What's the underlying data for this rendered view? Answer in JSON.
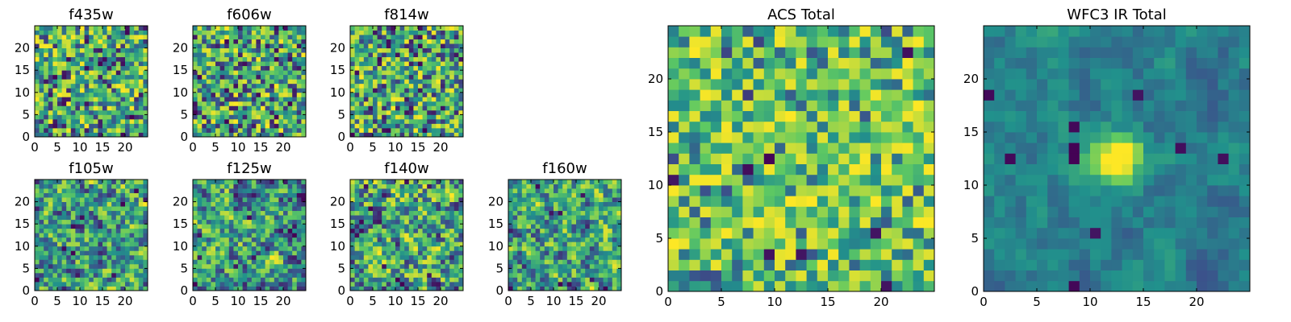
{
  "figure": {
    "colormap": [
      "#440154",
      "#3b528b",
      "#21918c",
      "#5ec962",
      "#fde725"
    ],
    "grid_size": 25
  },
  "chart_data": [
    {
      "id": "f435w",
      "type": "heatmap",
      "title": "f435w",
      "xticks": [
        0,
        5,
        10,
        15,
        20
      ],
      "yticks": [
        0,
        5,
        10,
        15,
        20
      ],
      "xlim": [
        0,
        25
      ],
      "ylim": [
        0,
        25
      ],
      "pattern": "noise",
      "seed": 11
    },
    {
      "id": "f606w",
      "type": "heatmap",
      "title": "f606w",
      "xticks": [
        0,
        5,
        10,
        15,
        20
      ],
      "yticks": [
        0,
        5,
        10,
        15,
        20
      ],
      "xlim": [
        0,
        25
      ],
      "ylim": [
        0,
        25
      ],
      "pattern": "noise",
      "seed": 23
    },
    {
      "id": "f814w",
      "type": "heatmap",
      "title": "f814w",
      "xticks": [
        0,
        5,
        10,
        15,
        20
      ],
      "yticks": [
        0,
        5,
        10,
        15,
        20
      ],
      "xlim": [
        0,
        25
      ],
      "ylim": [
        0,
        25
      ],
      "pattern": "noise",
      "seed": 37
    },
    {
      "id": "f105w",
      "type": "heatmap",
      "title": "f105w",
      "xticks": [
        0,
        5,
        10,
        15,
        20
      ],
      "yticks": [
        0,
        5,
        10,
        15,
        20
      ],
      "xlim": [
        0,
        25
      ],
      "ylim": [
        0,
        25
      ],
      "pattern": "smooth",
      "seed": 41
    },
    {
      "id": "f125w",
      "type": "heatmap",
      "title": "f125w",
      "xticks": [
        0,
        5,
        10,
        15,
        20
      ],
      "yticks": [
        0,
        5,
        10,
        15,
        20
      ],
      "xlim": [
        0,
        25
      ],
      "ylim": [
        0,
        25
      ],
      "pattern": "smooth",
      "seed": 53
    },
    {
      "id": "f140w",
      "type": "heatmap",
      "title": "f140w",
      "xticks": [
        0,
        5,
        10,
        15,
        20
      ],
      "yticks": [
        0,
        5,
        10,
        15,
        20
      ],
      "xlim": [
        0,
        25
      ],
      "ylim": [
        0,
        25
      ],
      "pattern": "smooth",
      "seed": 67
    },
    {
      "id": "f160w",
      "type": "heatmap",
      "title": "f160w",
      "xticks": [
        0,
        5,
        10,
        15,
        20
      ],
      "yticks": [
        0,
        5,
        10,
        15,
        20
      ],
      "xlim": [
        0,
        25
      ],
      "ylim": [
        0,
        25
      ],
      "pattern": "smooth",
      "seed": 79
    },
    {
      "id": "acs-total",
      "type": "heatmap",
      "title": "ACS Total",
      "xticks": [
        0,
        5,
        10,
        15,
        20
      ],
      "yticks": [
        0,
        5,
        10,
        15,
        20
      ],
      "xlim": [
        0,
        25
      ],
      "ylim": [
        0,
        25
      ],
      "pattern": "noise-bright",
      "seed": 97
    },
    {
      "id": "wfc3-ir-total",
      "type": "heatmap",
      "title": "WFC3 IR Total",
      "xticks": [
        0,
        5,
        10,
        15,
        20
      ],
      "yticks": [
        0,
        5,
        10,
        15,
        20
      ],
      "xlim": [
        0,
        25
      ],
      "ylim": [
        0,
        25
      ],
      "pattern": "source",
      "source_center": [
        12.5,
        12.5
      ],
      "seed": 131
    }
  ]
}
